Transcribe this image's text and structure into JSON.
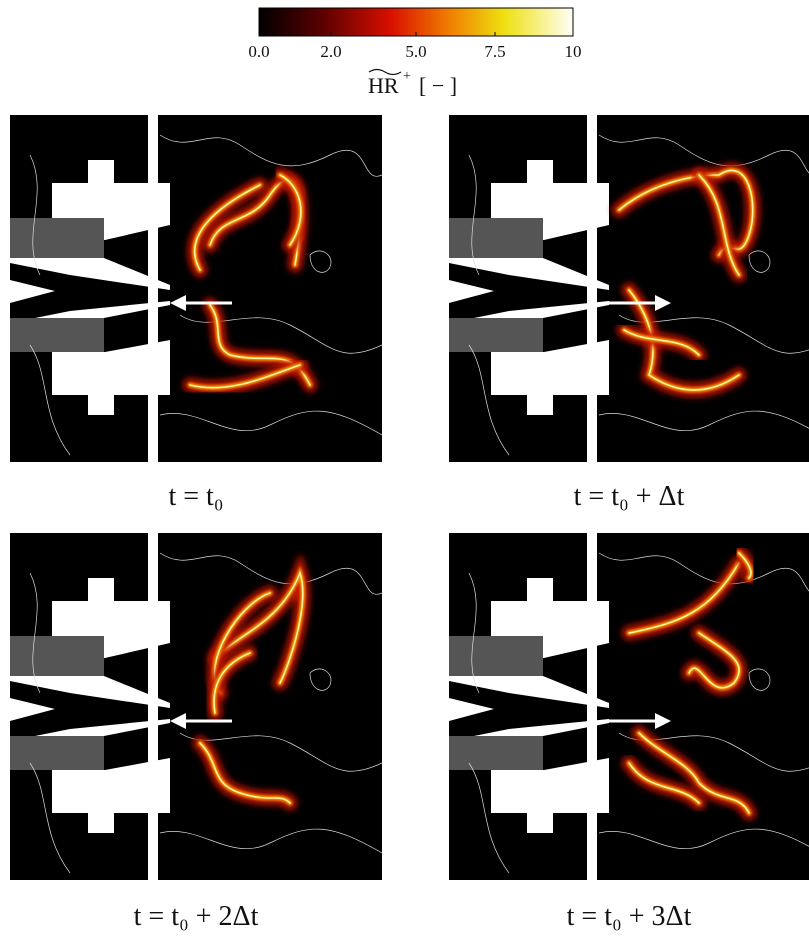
{
  "colorbar": {
    "ticks": [
      "0.0",
      "2.0",
      "5.0",
      "7.5",
      "10"
    ],
    "label": {
      "symbol": "HR",
      "superscript": "+",
      "unit": "[ − ]"
    }
  },
  "panels": [
    {
      "caption": "t = t₀"
    },
    {
      "caption": "t = t₀ + Δt"
    },
    {
      "caption": "t = t₀ + 2Δt"
    },
    {
      "caption": "t = t₀ + 3Δt"
    }
  ]
}
